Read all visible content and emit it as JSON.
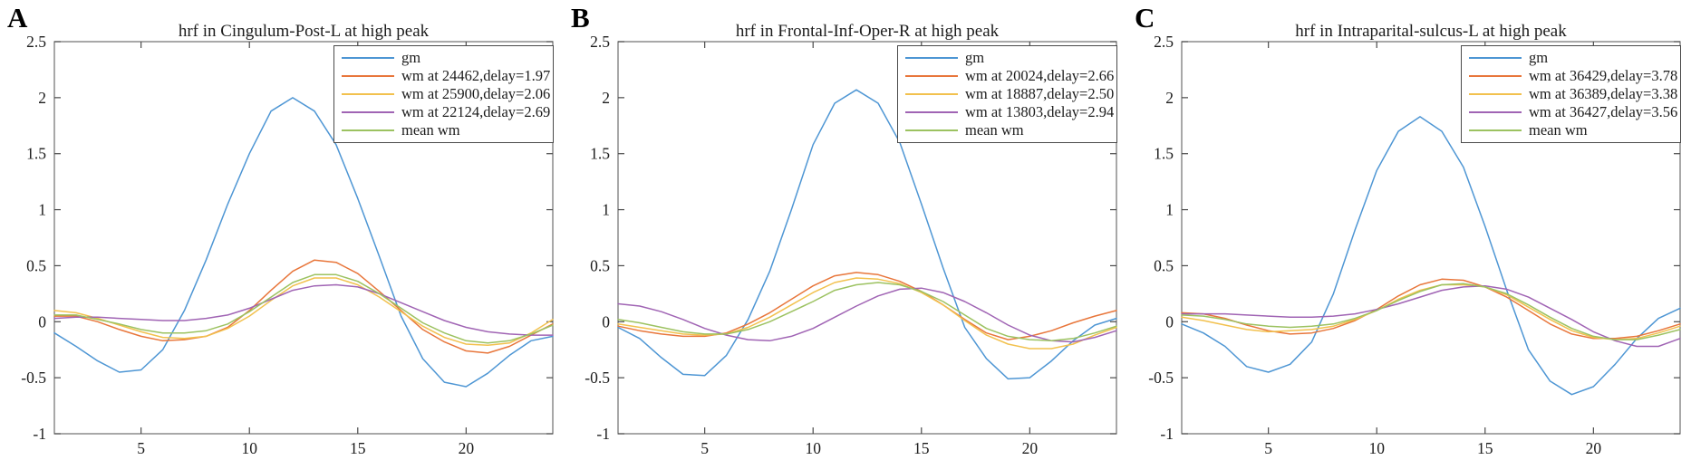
{
  "figure": {
    "background": "#ffffff",
    "frame_color": "#6e6e6e",
    "tick_color": "#4a4a4a",
    "text_color": "#1c1c1c",
    "legend_border_color": "#4a4a4a"
  },
  "chart_data": [
    {
      "type": "line",
      "panel_label": "A",
      "title": "hrf in Cingulum-Post-L at high peak",
      "xlabel": "",
      "ylabel": "",
      "xlim": [
        1,
        24
      ],
      "ylim": [
        -1,
        2.5
      ],
      "xticks": [
        "5",
        "10",
        "15",
        "20"
      ],
      "yticks": [
        "-1",
        "-0.5",
        "0",
        "0.5",
        "1",
        "1.5",
        "2",
        "2.5"
      ],
      "grid": false,
      "legend_position": "northeast",
      "x": [
        1,
        2,
        3,
        4,
        5,
        6,
        7,
        8,
        9,
        10,
        11,
        12,
        13,
        14,
        15,
        16,
        17,
        18,
        19,
        20,
        21,
        22,
        23,
        24
      ],
      "series": [
        {
          "name": "gm",
          "color": "#4E96D4",
          "values": [
            -0.1,
            -0.22,
            -0.35,
            -0.45,
            -0.43,
            -0.25,
            0.1,
            0.55,
            1.05,
            1.5,
            1.88,
            2.0,
            1.88,
            1.58,
            1.1,
            0.58,
            0.05,
            -0.33,
            -0.54,
            -0.58,
            -0.46,
            -0.3,
            -0.17,
            -0.13
          ]
        },
        {
          "name": "wm at 24462,delay=1.97",
          "color": "#E8763B",
          "values": [
            0.05,
            0.05,
            0.0,
            -0.07,
            -0.13,
            -0.17,
            -0.16,
            -0.13,
            -0.05,
            0.1,
            0.28,
            0.45,
            0.55,
            0.53,
            0.43,
            0.27,
            0.1,
            -0.07,
            -0.18,
            -0.26,
            -0.28,
            -0.22,
            -0.12,
            -0.02
          ]
        },
        {
          "name": "wm at 25900,delay=2.06",
          "color": "#F2C14E",
          "values": [
            0.1,
            0.08,
            0.03,
            -0.03,
            -0.09,
            -0.14,
            -0.15,
            -0.13,
            -0.06,
            0.05,
            0.19,
            0.32,
            0.39,
            0.39,
            0.33,
            0.22,
            0.09,
            -0.04,
            -0.14,
            -0.2,
            -0.21,
            -0.19,
            -0.1,
            0.02
          ]
        },
        {
          "name": "wm at 22124,delay=2.69",
          "color": "#A064B4",
          "values": [
            0.03,
            0.04,
            0.04,
            0.03,
            0.02,
            0.01,
            0.01,
            0.03,
            0.06,
            0.12,
            0.2,
            0.28,
            0.32,
            0.33,
            0.31,
            0.25,
            0.17,
            0.09,
            0.01,
            -0.05,
            -0.09,
            -0.11,
            -0.12,
            -0.12
          ]
        },
        {
          "name": "mean wm",
          "color": "#9CC261",
          "values": [
            0.06,
            0.06,
            0.02,
            -0.02,
            -0.07,
            -0.1,
            -0.1,
            -0.08,
            -0.02,
            0.09,
            0.22,
            0.35,
            0.42,
            0.42,
            0.36,
            0.25,
            0.12,
            -0.01,
            -0.1,
            -0.17,
            -0.19,
            -0.17,
            -0.11,
            -0.03
          ]
        }
      ]
    },
    {
      "type": "line",
      "panel_label": "B",
      "title": "hrf in Frontal-Inf-Oper-R at high peak",
      "xlabel": "",
      "ylabel": "",
      "xlim": [
        1,
        24
      ],
      "ylim": [
        -1,
        2.5
      ],
      "xticks": [
        "5",
        "10",
        "15",
        "20"
      ],
      "yticks": [
        "-1",
        "-0.5",
        "0",
        "0.5",
        "1",
        "1.5",
        "2",
        "2.5"
      ],
      "grid": false,
      "legend_position": "northeast",
      "x": [
        1,
        2,
        3,
        4,
        5,
        6,
        7,
        8,
        9,
        10,
        11,
        12,
        13,
        14,
        15,
        16,
        17,
        18,
        19,
        20,
        21,
        22,
        23,
        24
      ],
      "series": [
        {
          "name": "gm",
          "color": "#4E96D4",
          "values": [
            -0.05,
            -0.15,
            -0.32,
            -0.47,
            -0.48,
            -0.3,
            0.02,
            0.45,
            1.0,
            1.58,
            1.95,
            2.07,
            1.95,
            1.6,
            1.05,
            0.48,
            -0.05,
            -0.33,
            -0.51,
            -0.5,
            -0.35,
            -0.17,
            -0.03,
            0.03
          ]
        },
        {
          "name": "wm at 20024,delay=2.66",
          "color": "#E8763B",
          "values": [
            -0.04,
            -0.08,
            -0.11,
            -0.13,
            -0.13,
            -0.1,
            -0.02,
            0.08,
            0.2,
            0.32,
            0.41,
            0.44,
            0.42,
            0.36,
            0.27,
            0.15,
            0.02,
            -0.1,
            -0.16,
            -0.13,
            -0.08,
            -0.01,
            0.05,
            0.1
          ]
        },
        {
          "name": "wm at 18887,delay=2.50",
          "color": "#F2C14E",
          "values": [
            -0.02,
            -0.05,
            -0.08,
            -0.11,
            -0.12,
            -0.11,
            -0.05,
            0.04,
            0.15,
            0.26,
            0.35,
            0.39,
            0.38,
            0.34,
            0.26,
            0.15,
            0.01,
            -0.12,
            -0.2,
            -0.24,
            -0.24,
            -0.2,
            -0.12,
            -0.05
          ]
        },
        {
          "name": "wm at 13803,delay=2.94",
          "color": "#A064B4",
          "values": [
            0.16,
            0.14,
            0.09,
            0.02,
            -0.06,
            -0.12,
            -0.16,
            -0.17,
            -0.13,
            -0.06,
            0.04,
            0.14,
            0.23,
            0.29,
            0.3,
            0.26,
            0.18,
            0.08,
            -0.03,
            -0.12,
            -0.17,
            -0.18,
            -0.14,
            -0.08
          ]
        },
        {
          "name": "mean wm",
          "color": "#9CC261",
          "values": [
            0.02,
            -0.01,
            -0.05,
            -0.09,
            -0.11,
            -0.11,
            -0.07,
            0.0,
            0.09,
            0.18,
            0.28,
            0.33,
            0.35,
            0.33,
            0.27,
            0.18,
            0.06,
            -0.06,
            -0.13,
            -0.16,
            -0.17,
            -0.15,
            -0.1,
            -0.04
          ]
        }
      ]
    },
    {
      "type": "line",
      "panel_label": "C",
      "title": "hrf in Intraparital-sulcus-L at high peak",
      "xlabel": "",
      "ylabel": "",
      "xlim": [
        1,
        24
      ],
      "ylim": [
        -1,
        2.5
      ],
      "xticks": [
        "5",
        "10",
        "15",
        "20"
      ],
      "yticks": [
        "-1",
        "-0.5",
        "0",
        "0.5",
        "1",
        "1.5",
        "2",
        "2.5"
      ],
      "grid": false,
      "legend_position": "northeast",
      "x": [
        1,
        2,
        3,
        4,
        5,
        6,
        7,
        8,
        9,
        10,
        11,
        12,
        13,
        14,
        15,
        16,
        17,
        18,
        19,
        20,
        21,
        22,
        23,
        24
      ],
      "series": [
        {
          "name": "gm",
          "color": "#4E96D4",
          "values": [
            -0.02,
            -0.1,
            -0.22,
            -0.4,
            -0.45,
            -0.38,
            -0.18,
            0.25,
            0.82,
            1.35,
            1.7,
            1.83,
            1.7,
            1.38,
            0.85,
            0.28,
            -0.25,
            -0.53,
            -0.65,
            -0.58,
            -0.38,
            -0.15,
            0.03,
            0.12
          ]
        },
        {
          "name": "wm at 36429,delay=3.78",
          "color": "#E8763B",
          "values": [
            0.08,
            0.07,
            0.03,
            -0.03,
            -0.08,
            -0.11,
            -0.1,
            -0.06,
            0.01,
            0.11,
            0.23,
            0.33,
            0.38,
            0.37,
            0.31,
            0.22,
            0.1,
            -0.02,
            -0.11,
            -0.15,
            -0.15,
            -0.13,
            -0.08,
            -0.02
          ]
        },
        {
          "name": "wm at 36389,delay=3.38",
          "color": "#F2C14E",
          "values": [
            0.04,
            0.01,
            -0.03,
            -0.07,
            -0.09,
            -0.08,
            -0.07,
            -0.04,
            0.02,
            0.1,
            0.2,
            0.28,
            0.33,
            0.33,
            0.31,
            0.24,
            0.13,
            0.02,
            -0.08,
            -0.14,
            -0.16,
            -0.15,
            -0.1,
            -0.04
          ]
        },
        {
          "name": "wm at 36427,delay=3.56",
          "color": "#A064B4",
          "values": [
            0.07,
            0.07,
            0.07,
            0.06,
            0.05,
            0.04,
            0.04,
            0.05,
            0.07,
            0.11,
            0.16,
            0.22,
            0.28,
            0.31,
            0.32,
            0.29,
            0.22,
            0.12,
            0.02,
            -0.09,
            -0.17,
            -0.22,
            -0.22,
            -0.15
          ]
        },
        {
          "name": "mean wm",
          "color": "#9CC261",
          "values": [
            0.06,
            0.05,
            0.02,
            -0.02,
            -0.04,
            -0.05,
            -0.04,
            -0.02,
            0.03,
            0.1,
            0.19,
            0.27,
            0.33,
            0.34,
            0.31,
            0.25,
            0.15,
            0.04,
            -0.06,
            -0.13,
            -0.16,
            -0.16,
            -0.12,
            -0.07
          ]
        }
      ]
    }
  ]
}
